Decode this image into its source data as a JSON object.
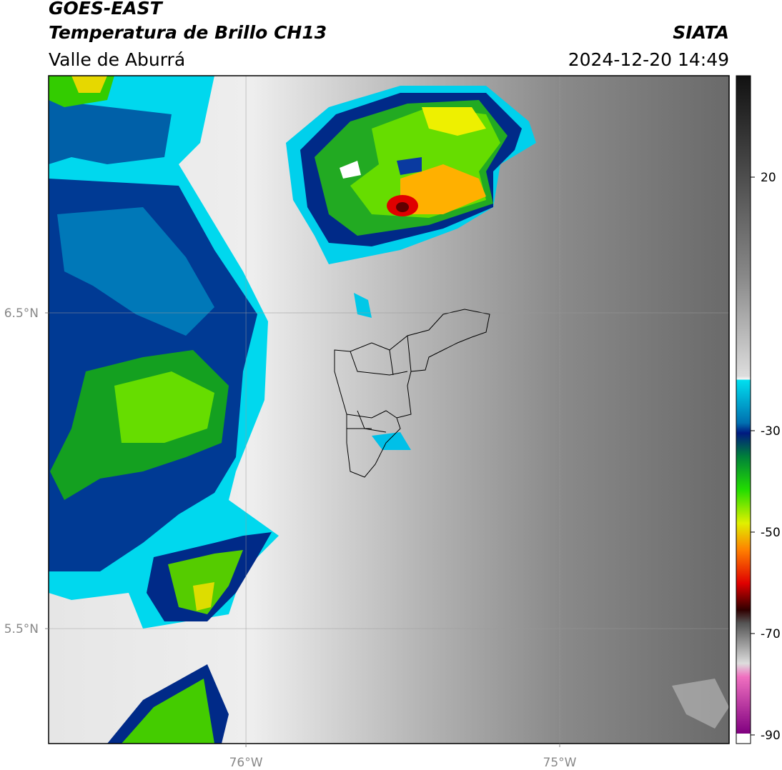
{
  "header": {
    "title": "GOES-EAST",
    "subtitle": "Temperatura de Brillo CH13",
    "region": "Valle de Aburrá",
    "source": "SIATA",
    "timestamp": "2024-12-20 14:49"
  },
  "map": {
    "xlim": [
      -76.629,
      -74.46
    ],
    "ylim": [
      5.136,
      7.251
    ],
    "xticks": [
      {
        "value": -76,
        "label": "76°W"
      },
      {
        "value": -75,
        "label": "75°W"
      }
    ],
    "yticks": [
      {
        "value": 6.5,
        "label": "6.5°N"
      },
      {
        "value": 5.5,
        "label": "5.5°N"
      }
    ],
    "grid": true
  },
  "colorbar": {
    "lim": [
      -91.7,
      40
    ],
    "ticks": [
      20,
      -30,
      -50,
      -70,
      -90
    ]
  }
}
